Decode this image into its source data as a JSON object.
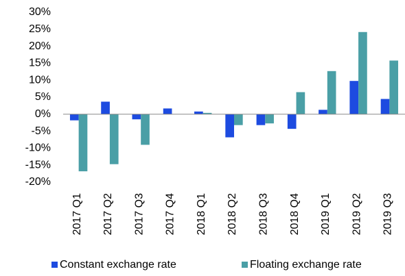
{
  "chart_data": {
    "type": "bar",
    "categories": [
      "2017 Q1",
      "2017 Q2",
      "2017 Q3",
      "2017 Q4",
      "2018 Q1",
      "2018 Q2",
      "2018 Q3",
      "2018 Q4",
      "2019 Q1",
      "2019 Q2",
      "2019 Q3"
    ],
    "series": [
      {
        "name": "Constant exchange rate",
        "color": "#1d4be0",
        "values": [
          -1.8,
          3.7,
          -1.5,
          1.7,
          0.8,
          -6.8,
          -3.2,
          -4.3,
          1.3,
          9.8,
          4.5
        ]
      },
      {
        "name": "Floating exchange rate",
        "color": "#4a9fa6",
        "values": [
          -16.8,
          -14.7,
          -9.0,
          0,
          0.4,
          -3.2,
          -2.7,
          6.5,
          12.7,
          24.2,
          15.8
        ]
      }
    ],
    "ylim": [
      -20,
      30
    ],
    "yticks": [
      {
        "value": -20,
        "label": "-20%"
      },
      {
        "value": -15,
        "label": "-15%"
      },
      {
        "value": -10,
        "label": "-10%"
      },
      {
        "value": -5,
        "label": "-5%"
      },
      {
        "value": 0,
        "label": "0%"
      },
      {
        "value": 5,
        "label": "5%"
      },
      {
        "value": 10,
        "label": "10%"
      },
      {
        "value": 15,
        "label": "15%"
      },
      {
        "value": 20,
        "label": "20%"
      },
      {
        "value": 25,
        "label": "25%"
      },
      {
        "value": 30,
        "label": "30%"
      }
    ],
    "grid": false,
    "legend": "bottom"
  }
}
